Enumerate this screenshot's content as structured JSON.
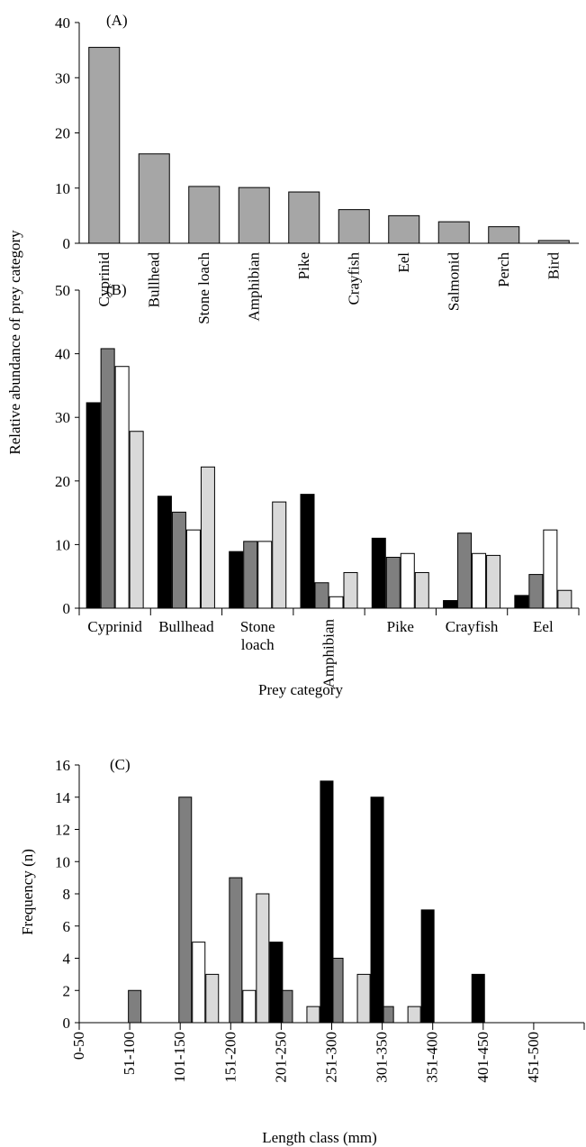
{
  "page": {
    "shared_ylabel": "Relative abundance of prey category"
  },
  "colors": {
    "axis": "#000000",
    "panel_a_bar": "#a6a6a6",
    "series_black": "#000000",
    "series_dark_grey": "#7f7f7f",
    "series_white": "#ffffff",
    "series_light_grey": "#d9d9d9"
  },
  "chart_data": [
    {
      "panel": "(A)",
      "type": "bar",
      "ylabel": "",
      "xlabel": "",
      "ylim": [
        0,
        40
      ],
      "yticks": [
        0,
        10,
        20,
        30,
        40
      ],
      "grid": false,
      "legend": "none",
      "categories": [
        "Cyprinid",
        "Bullhead",
        "Stone loach",
        "Amphibian",
        "Pike",
        "Crayfish",
        "Eel",
        "Salmonid",
        "Perch",
        "Bird"
      ],
      "values": [
        35.5,
        16.2,
        10.3,
        10.1,
        9.3,
        6.1,
        5.0,
        3.9,
        3.0,
        0.5
      ]
    },
    {
      "panel": "(B)",
      "type": "bar",
      "ylabel": "",
      "xlabel": "Prey category",
      "ylim": [
        0,
        50
      ],
      "yticks": [
        0,
        10,
        20,
        30,
        40,
        50
      ],
      "grid": false,
      "legend": "none",
      "categories": [
        "Cyprinid",
        "Bullhead",
        "Stone\nloach",
        "Amphibian",
        "Pike",
        "Crayfish",
        "Eel"
      ],
      "series": [
        {
          "color": "#000000",
          "values": [
            32.3,
            17.6,
            8.9,
            17.9,
            11.0,
            1.2,
            2.0
          ]
        },
        {
          "color": "#7f7f7f",
          "values": [
            40.8,
            15.1,
            10.5,
            4.0,
            8.0,
            11.8,
            5.3
          ]
        },
        {
          "color": "#ffffff",
          "values": [
            38.0,
            12.3,
            10.5,
            1.8,
            8.6,
            8.6,
            12.3
          ]
        },
        {
          "color": "#d9d9d9",
          "values": [
            27.8,
            22.2,
            16.7,
            5.6,
            5.6,
            8.3,
            2.8
          ]
        }
      ]
    },
    {
      "panel": "(C)",
      "type": "bar",
      "ylabel": "Frequency (n)",
      "xlabel": "Length class (mm)",
      "ylim": [
        0,
        16
      ],
      "yticks": [
        0,
        2,
        4,
        6,
        8,
        10,
        12,
        14,
        16
      ],
      "grid": false,
      "legend": "none",
      "categories": [
        "0-50",
        "51-100",
        "101-150",
        "151-200",
        "201-250",
        "251-300",
        "301-350",
        "351-400",
        "401-450",
        "451-500"
      ],
      "series": [
        {
          "color": "#7f7f7f",
          "values": [
            0,
            2,
            14,
            9,
            2,
            4,
            1,
            0,
            0,
            0
          ]
        },
        {
          "color": "#ffffff",
          "values": [
            0,
            0,
            5,
            2,
            0,
            0,
            0,
            0,
            0,
            0
          ]
        },
        {
          "color": "#d9d9d9",
          "values": [
            0,
            0,
            3,
            8,
            1,
            3,
            1,
            0,
            0,
            0
          ]
        },
        {
          "color": "#000000",
          "values": [
            0,
            0,
            0,
            5,
            15,
            14,
            7,
            3,
            0,
            0
          ]
        }
      ]
    }
  ]
}
